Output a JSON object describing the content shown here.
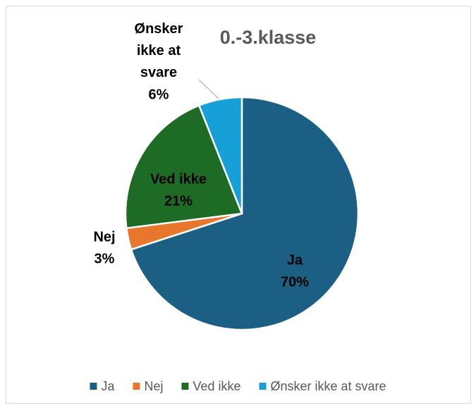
{
  "chart_data": {
    "type": "pie",
    "title": "0.-3.klasse",
    "categories": [
      "Ja",
      "Nej",
      "Ved ikke",
      "Ønsker ikke at svare"
    ],
    "values": [
      70,
      3,
      21,
      6
    ],
    "value_labels": [
      "70%",
      "3%",
      "21%",
      "6%"
    ],
    "colors": [
      "#1b5f84",
      "#e8762d",
      "#1e6b25",
      "#17a0d8"
    ],
    "legend": "bottom"
  }
}
